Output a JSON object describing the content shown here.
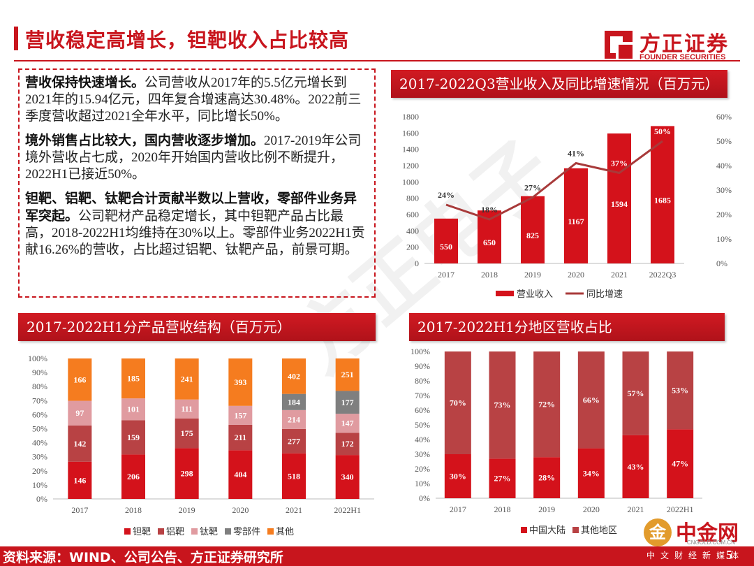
{
  "header": {
    "title": "营收稳定高增长，钽靶收入占比较高",
    "logo_cn": "方正证券",
    "logo_en": "FOUNDER SECURITIES"
  },
  "text": {
    "p1_bold": "营收保持快速增长。",
    "p1_rest": "公司营收从2017年的5.5亿元增长到2021年的15.94亿元，四年复合增速高达30.48%。2022前三季度营收超过2021全年水平，同比增长50%。",
    "p2_bold": "境外销售占比较大，国内营收逐步增加。",
    "p2_rest": "2017-2019年公司境外营收占七成，2020年开始国内营收比例不断提升，2022H1已接近50%。",
    "p3_bold": "钽靶、铝靶、钛靶合计贡献半数以上营收，零部件业务异军突起。",
    "p3_rest": "公司靶材产品稳定增长，其中钽靶产品占比最高，2018-2022H1均维持在30%以上。零部件业务2022H1贡献16.26%的营收，占比超过铝靶、钛靶产品，前景可期。"
  },
  "panels": {
    "p1": "2017-2022Q3营业收入及同比增速情况（百万元）",
    "p2": "2017-2022H1分产品营收结构（百万元）",
    "p3": "2017-2022H1分地区营收占比"
  },
  "chart_data": [
    {
      "type": "bar",
      "categories": [
        "2017",
        "2018",
        "2019",
        "2020",
        "2021",
        "2022Q3"
      ],
      "series": [
        {
          "name": "营业收入",
          "type": "bar",
          "values": [
            550,
            650,
            825,
            1167,
            1594,
            1685
          ]
        },
        {
          "name": "同比增速",
          "type": "line",
          "axis": "right",
          "values": [
            24,
            18,
            27,
            41,
            37,
            50
          ]
        }
      ],
      "ylim": [
        0,
        1800
      ],
      "yticks": [
        "0",
        "200",
        "400",
        "600",
        "800",
        "1000",
        "1200",
        "1400",
        "1600",
        "1800"
      ],
      "y2lim": [
        0,
        60
      ],
      "y2ticks": [
        "0%",
        "10%",
        "20%",
        "30%",
        "40%",
        "50%",
        "60%"
      ],
      "line_labels": [
        "24%",
        "18%",
        "27%",
        "41%",
        "37%",
        "50%"
      ],
      "legend": "bottom",
      "colors": {
        "bar": "#d4121b",
        "line": "#a83a3a"
      }
    },
    {
      "type": "bar",
      "stacked": "percent",
      "categories": [
        "2017",
        "2018",
        "2019",
        "2020",
        "2021",
        "2022H1"
      ],
      "series": [
        {
          "name": "钽靶",
          "color": "#d4121b",
          "values": [
            146,
            206,
            298,
            404,
            518,
            340
          ]
        },
        {
          "name": "铝靶",
          "color": "#b84244",
          "values": [
            142,
            159,
            175,
            211,
            277,
            172
          ]
        },
        {
          "name": "钛靶",
          "color": "#e09ba0",
          "values": [
            97,
            101,
            111,
            157,
            214,
            147
          ]
        },
        {
          "name": "零部件",
          "color": "#7f7f7f",
          "values": [
            0,
            0,
            0,
            0,
            184,
            177
          ]
        },
        {
          "name": "其他",
          "color": "#f57c1f",
          "values": [
            166,
            185,
            241,
            393,
            402,
            251
          ]
        }
      ],
      "yticks": [
        "0%",
        "10%",
        "20%",
        "30%",
        "40%",
        "50%",
        "60%",
        "70%",
        "80%",
        "90%",
        "100%"
      ],
      "legend": "bottom"
    },
    {
      "type": "bar",
      "stacked": "percent",
      "categories": [
        "2017",
        "2018",
        "2019",
        "2020",
        "2021",
        "2022H1"
      ],
      "series": [
        {
          "name": "中国大陆",
          "color": "#d4121b",
          "values": [
            30,
            27,
            28,
            34,
            43,
            47
          ]
        },
        {
          "name": "其他地区",
          "color": "#b84244",
          "values": [
            70,
            73,
            72,
            66,
            57,
            53
          ]
        }
      ],
      "yticks": [
        "0%",
        "10%",
        "20%",
        "30%",
        "40%",
        "50%",
        "60%",
        "70%",
        "80%",
        "90%",
        "100%"
      ],
      "legend": "bottom"
    }
  ],
  "footer": {
    "source": "资料来源：WIND、公司公告、方正证券研究所",
    "page": "5",
    "wm_cn": "中金网",
    "wm_url": "CNGOLD.COM.CN",
    "wm_sub": "中文财经新媒体",
    "wm_badge": "金",
    "watermark": "方正电子"
  }
}
